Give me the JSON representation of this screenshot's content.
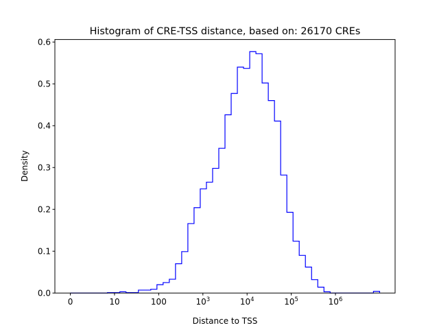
{
  "chart_data": {
    "type": "histogram-step",
    "title": "Histogram of CRE-TSS distance, based on: 26170 CREs",
    "xlabel": "Distance to TSS",
    "ylabel": "Density",
    "x_scale": "log10",
    "xlim": [
      -0.35,
      7.35
    ],
    "ylim": [
      0,
      0.606
    ],
    "grid": false,
    "line_color": "#0000ff",
    "bin_range": [
      0,
      7.0
    ],
    "values": [
      0,
      0,
      0,
      0,
      0,
      0,
      0.001,
      0.001,
      0.003,
      0.001,
      0.001,
      0.007,
      0.007,
      0.009,
      0.02,
      0.025,
      0.033,
      0.07,
      0.099,
      0.166,
      0.204,
      0.249,
      0.265,
      0.298,
      0.346,
      0.426,
      0.477,
      0.54,
      0.537,
      0.577,
      0.572,
      0.502,
      0.46,
      0.411,
      0.282,
      0.193,
      0.124,
      0.09,
      0.062,
      0.032,
      0.014,
      0.003,
      0,
      0,
      0,
      0,
      0,
      0,
      0,
      0.004
    ],
    "x_ticks": [
      {
        "value": 0,
        "label": "0"
      },
      {
        "value": 1,
        "label": "10"
      },
      {
        "value": 2,
        "label": "100"
      },
      {
        "value": 3,
        "label": "10",
        "sup": "3"
      },
      {
        "value": 4,
        "label": "10",
        "sup": "4"
      },
      {
        "value": 5,
        "label": "10",
        "sup": "5"
      },
      {
        "value": 6,
        "label": "10",
        "sup": "6"
      }
    ],
    "y_ticks": [
      {
        "value": 0,
        "label": "0.0"
      },
      {
        "value": 0.1,
        "label": "0.1"
      },
      {
        "value": 0.2,
        "label": "0.2"
      },
      {
        "value": 0.3,
        "label": "0.3"
      },
      {
        "value": 0.4,
        "label": "0.4"
      },
      {
        "value": 0.5,
        "label": "0.5"
      },
      {
        "value": 0.6,
        "label": "0.6"
      }
    ]
  }
}
